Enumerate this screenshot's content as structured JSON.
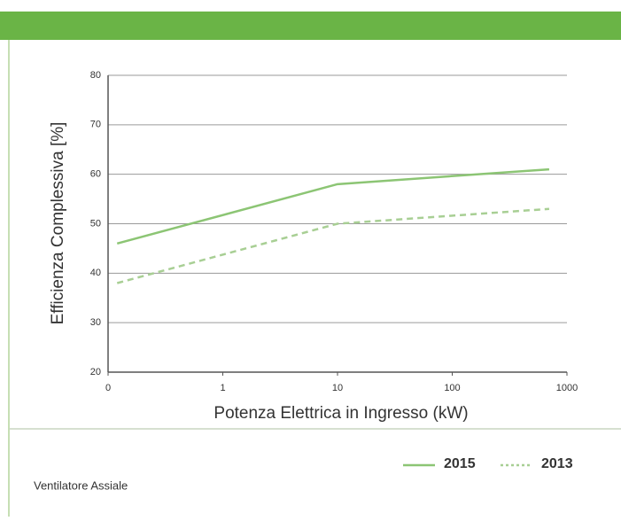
{
  "chart_data": {
    "type": "line",
    "ylabel": "Efficienza Complessiva [%]",
    "xlabel": "Potenza Elettrica in Ingresso (kW)",
    "x": [
      0.12,
      10,
      700
    ],
    "series": [
      {
        "name": "2015",
        "color": "#8cc574",
        "style": "solid",
        "values": [
          46,
          58,
          61
        ]
      },
      {
        "name": "2013",
        "color": "#a8cf94",
        "style": "dashed",
        "values": [
          38,
          50,
          53
        ]
      }
    ],
    "xscale": "log",
    "xlim": [
      0.1,
      1000
    ],
    "xticks": [
      {
        "value": 0.1,
        "label": "0"
      },
      1,
      10,
      100,
      1000
    ],
    "ylim": [
      20,
      80
    ],
    "yticks": [
      20,
      30,
      40,
      50,
      60,
      70,
      80
    ],
    "grid": true,
    "legend": "bottom-right"
  },
  "footer": {
    "text": "Ventilatore Assiale"
  }
}
